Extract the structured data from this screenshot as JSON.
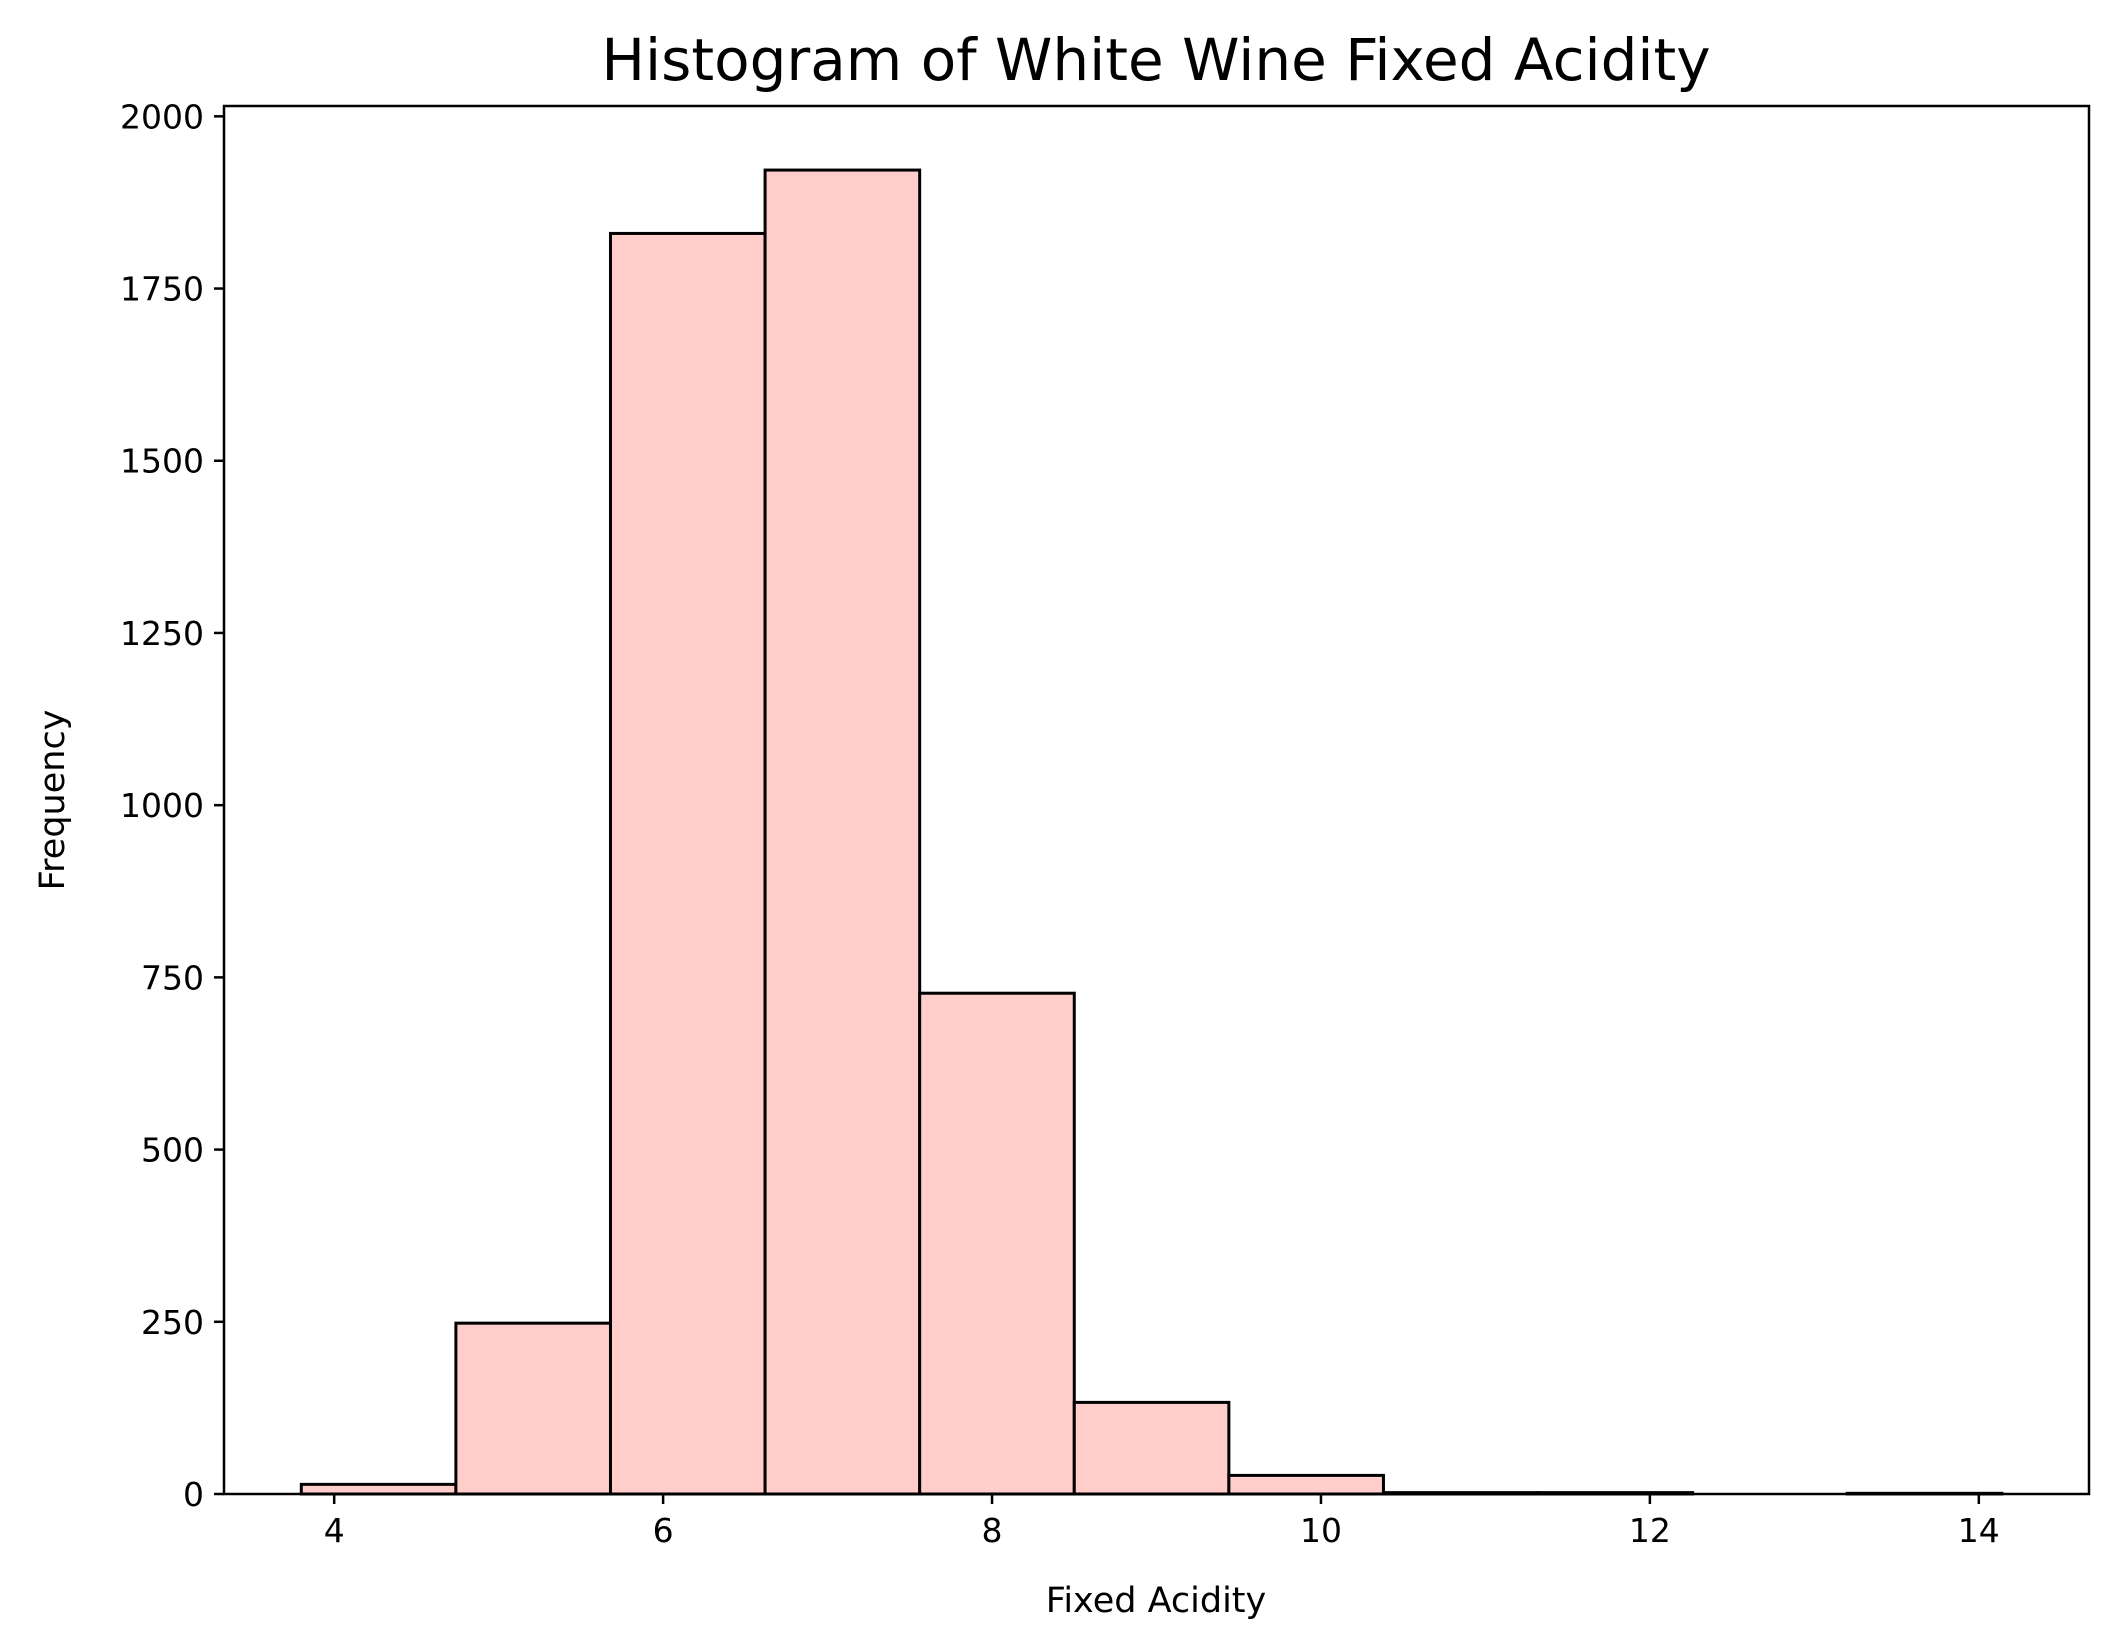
{
  "chart_data": {
    "type": "bar",
    "title": "Histogram of White Wine Fixed Acidity",
    "xlabel": "Fixed Acidity",
    "ylabel": "Frequency",
    "xlim": [
      3.33,
      14.67
    ],
    "ylim": [
      0,
      2015
    ],
    "x_ticks": [
      4,
      6,
      8,
      10,
      12,
      14
    ],
    "x_tick_labels": [
      "4",
      "6",
      "8",
      "10",
      "12",
      "14"
    ],
    "y_ticks": [
      0,
      250,
      500,
      750,
      1000,
      1250,
      1500,
      1750,
      2000
    ],
    "y_tick_labels": [
      "0",
      "250",
      "500",
      "750",
      "1000",
      "1250",
      "1500",
      "1750",
      "2000"
    ],
    "bins": [
      {
        "start": 3.8,
        "end": 4.74,
        "count": 14
      },
      {
        "start": 4.74,
        "end": 5.68,
        "count": 248
      },
      {
        "start": 5.68,
        "end": 6.62,
        "count": 1830
      },
      {
        "start": 6.62,
        "end": 7.56,
        "count": 1922
      },
      {
        "start": 7.56,
        "end": 8.5,
        "count": 727
      },
      {
        "start": 8.5,
        "end": 9.44,
        "count": 133
      },
      {
        "start": 9.44,
        "end": 10.38,
        "count": 27
      },
      {
        "start": 10.38,
        "end": 11.32,
        "count": 2
      },
      {
        "start": 11.32,
        "end": 12.26,
        "count": 2
      },
      {
        "start": 12.26,
        "end": 13.2,
        "count": 0
      },
      {
        "start": 13.2,
        "end": 14.14,
        "count": 1
      }
    ],
    "bar_fill": "#ffcdca",
    "bar_edge": "#000000",
    "grid": false,
    "legend": "none"
  }
}
